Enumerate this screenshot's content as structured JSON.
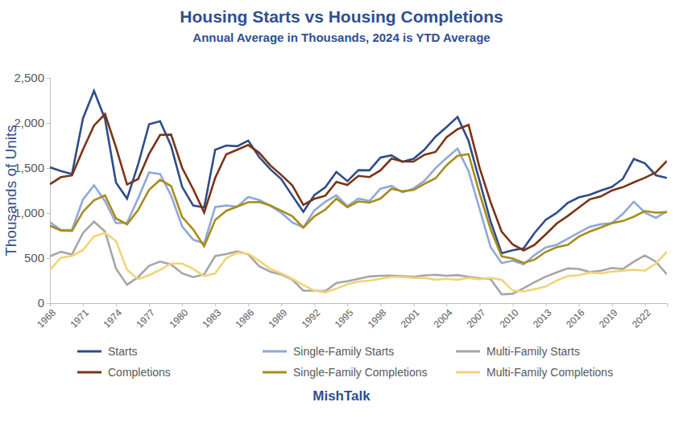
{
  "chart_data": {
    "type": "line",
    "title": "Housing Starts vs Housing Completions",
    "subtitle": "Annual Average in Thousands, 2024 is YTD Average",
    "ylabel": "Thousands of Units",
    "annotations": [
      "MishTalk"
    ],
    "x": [
      1968,
      1969,
      1970,
      1971,
      1972,
      1973,
      1974,
      1975,
      1976,
      1977,
      1978,
      1979,
      1980,
      1981,
      1982,
      1983,
      1984,
      1985,
      1986,
      1987,
      1988,
      1989,
      1990,
      1991,
      1992,
      1993,
      1994,
      1995,
      1996,
      1997,
      1998,
      1999,
      2000,
      2001,
      2002,
      2003,
      2004,
      2005,
      2006,
      2007,
      2008,
      2009,
      2010,
      2011,
      2012,
      2013,
      2014,
      2015,
      2016,
      2017,
      2018,
      2019,
      2020,
      2021,
      2022,
      2023,
      2024
    ],
    "xlim": [
      1968,
      2024
    ],
    "xticks": [
      1968,
      1971,
      1974,
      1977,
      1980,
      1983,
      1986,
      1989,
      1992,
      1995,
      1998,
      2001,
      2004,
      2007,
      2010,
      2013,
      2016,
      2019,
      2022
    ],
    "ylim": [
      0,
      2500
    ],
    "yticks": [
      0,
      500,
      {
        "value": 1000,
        "label": "1,000"
      },
      {
        "value": 1500,
        "label": "1,500"
      },
      {
        "value": 2000,
        "label": "2,000"
      },
      {
        "value": 2500,
        "label": "2,500"
      }
    ],
    "grid": false,
    "legend": "bottom",
    "series": [
      {
        "name": "Starts",
        "color": "#2e4d8a",
        "values": [
          1508,
          1467,
          1434,
          2052,
          2357,
          2045,
          1338,
          1160,
          1538,
          1987,
          2020,
          1745,
          1292,
          1084,
          1062,
          1703,
          1750,
          1742,
          1805,
          1621,
          1488,
          1376,
          1193,
          1014,
          1200,
          1288,
          1457,
          1354,
          1477,
          1474,
          1617,
          1641,
          1569,
          1603,
          1705,
          1848,
          1956,
          2068,
          1801,
          1355,
          906,
          554,
          587,
          609,
          781,
          925,
          1003,
          1112,
          1174,
          1203,
          1250,
          1290,
          1380,
          1601,
          1553,
          1420,
          1390
        ]
      },
      {
        "name": "Single-Family Starts",
        "color": "#8fa9d8",
        "values": [
          899,
          811,
          813,
          1151,
          1309,
          1132,
          888,
          892,
          1162,
          1451,
          1433,
          1194,
          852,
          705,
          663,
          1068,
          1084,
          1072,
          1179,
          1146,
          1081,
          1003,
          895,
          840,
          1030,
          1126,
          1198,
          1076,
          1161,
          1134,
          1271,
          1302,
          1231,
          1273,
          1359,
          1499,
          1611,
          1716,
          1465,
          1046,
          622,
          445,
          471,
          431,
          535,
          618,
          648,
          715,
          782,
          849,
          876,
          888,
          991,
          1127,
          1005,
          947,
          1020
        ]
      },
      {
        "name": "Multi-Family Starts",
        "color": "#a6a6a6",
        "values": [
          520,
          570,
          540,
          780,
          906,
          795,
          382,
          204,
          289,
          414,
          462,
          429,
          331,
          288,
          320,
          522,
          544,
          576,
          542,
          409,
          348,
          318,
          260,
          138,
          139,
          133,
          224,
          244,
          271,
          296,
          303,
          306,
          299,
          293,
          308,
          315,
          303,
          311,
          293,
          277,
          266,
          97,
          104,
          167,
          234,
          294,
          342,
          386,
          380,
          345,
          360,
          390,
          379,
          460,
          530,
          460,
          320
        ]
      },
      {
        "name": "Completions",
        "color": "#7b3416",
        "values": [
          1320,
          1399,
          1418,
          1706,
          1972,
          2100,
          1729,
          1317,
          1377,
          1657,
          1868,
          1871,
          1502,
          1266,
          1006,
          1390,
          1652,
          1703,
          1756,
          1669,
          1530,
          1423,
          1308,
          1091,
          1158,
          1193,
          1347,
          1313,
          1413,
          1400,
          1474,
          1605,
          1574,
          1571,
          1648,
          1679,
          1842,
          1931,
          1979,
          1503,
          1120,
          794,
          652,
          585,
          649,
          764,
          884,
          968,
          1060,
          1153,
          1185,
          1251,
          1287,
          1341,
          1392,
          1452,
          1580
        ]
      },
      {
        "name": "Single-Family Completions",
        "color": "#a88d1a",
        "values": [
          859,
          807,
          802,
          1014,
          1143,
          1197,
          940,
          875,
          1034,
          1258,
          1369,
          1301,
          957,
          819,
          632,
          924,
          1025,
          1072,
          1120,
          1123,
          1085,
          1026,
          966,
          838,
          964,
          1039,
          1160,
          1066,
          1129,
          1116,
          1160,
          1270,
          1242,
          1256,
          1325,
          1386,
          1532,
          1636,
          1654,
          1218,
          819,
          520,
          496,
          447,
          483,
          569,
          620,
          648,
          738,
          795,
          840,
          888,
          912,
          960,
          1022,
          1004,
          1010
        ]
      },
      {
        "name": "Multi-Family Completions",
        "color": "#f2d477",
        "values": [
          370,
          505,
          525,
          590,
          740,
          780,
          690,
          370,
          265,
          310,
          370,
          440,
          440,
          380,
          300,
          330,
          500,
          560,
          550,
          470,
          380,
          330,
          270,
          200,
          140,
          120,
          160,
          210,
          240,
          250,
          270,
          290,
          290,
          280,
          280,
          260,
          270,
          260,
          280,
          265,
          280,
          260,
          140,
          130,
          155,
          185,
          250,
          300,
          310,
          340,
          330,
          350,
          360,
          370,
          360,
          440,
          570
        ]
      }
    ]
  }
}
